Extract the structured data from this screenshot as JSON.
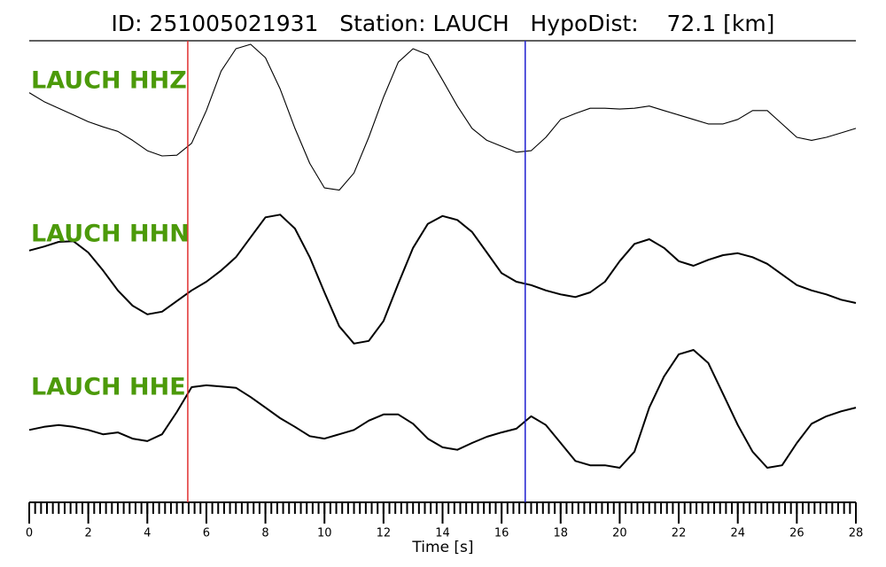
{
  "chart_data": {
    "type": "seismogram",
    "title": "ID: 251005021931   Station: LAUCH   HypoDist:    72.1 [km]",
    "xlabel": "Time [s]",
    "xlim": [
      0,
      28
    ],
    "xticks": [
      0,
      2,
      4,
      6,
      8,
      10,
      12,
      14,
      16,
      18,
      20,
      22,
      24,
      26,
      28
    ],
    "minor_tick_interval": 0.2,
    "x": [
      0,
      0.5,
      1,
      1.5,
      2,
      2.5,
      3,
      3.5,
      4,
      4.5,
      5,
      5.5,
      6,
      6.5,
      7,
      7.5,
      8,
      8.5,
      9,
      9.5,
      10,
      10.5,
      11,
      11.5,
      12,
      12.5,
      13,
      13.5,
      14,
      14.5,
      15,
      15.5,
      16,
      16.5,
      17,
      17.5,
      18,
      18.5,
      19,
      19.5,
      20,
      20.5,
      21,
      21.5,
      22,
      22.5,
      23,
      23.5,
      24,
      24.5,
      25,
      25.5,
      26,
      26.5,
      27,
      27.5,
      28
    ],
    "ylim": [
      -1,
      1
    ],
    "label_color": "#4c9a0a",
    "series": [
      {
        "name": "LAUCH HHZ",
        "color": "#000000",
        "values": [
          0.35,
          0.23,
          0.14,
          0.05,
          -0.04,
          -0.11,
          -0.17,
          -0.29,
          -0.43,
          -0.5,
          -0.49,
          -0.33,
          0.11,
          0.64,
          0.94,
          1.0,
          0.82,
          0.4,
          -0.13,
          -0.6,
          -0.93,
          -0.96,
          -0.73,
          -0.25,
          0.29,
          0.76,
          0.94,
          0.86,
          0.52,
          0.17,
          -0.13,
          -0.29,
          -0.37,
          -0.45,
          -0.43,
          -0.25,
          -0.01,
          0.07,
          0.14,
          0.14,
          0.13,
          0.14,
          0.17,
          0.11,
          0.05,
          -0.01,
          -0.07,
          -0.07,
          -0.01,
          0.11,
          0.11,
          -0.07,
          -0.25,
          -0.29,
          -0.25,
          -0.19,
          -0.13
        ]
      },
      {
        "name": "LAUCH HHN",
        "color": "#000000",
        "values": [
          0.43,
          0.49,
          0.56,
          0.57,
          0.4,
          0.13,
          -0.17,
          -0.4,
          -0.53,
          -0.49,
          -0.33,
          -0.17,
          -0.04,
          0.13,
          0.33,
          0.63,
          0.93,
          0.97,
          0.76,
          0.33,
          -0.2,
          -0.71,
          -0.97,
          -0.93,
          -0.63,
          -0.07,
          0.47,
          0.83,
          0.95,
          0.89,
          0.71,
          0.4,
          0.09,
          -0.04,
          -0.09,
          -0.17,
          -0.23,
          -0.27,
          -0.2,
          -0.04,
          0.27,
          0.53,
          0.6,
          0.47,
          0.27,
          0.2,
          0.29,
          0.36,
          0.39,
          0.33,
          0.23,
          0.07,
          -0.09,
          -0.17,
          -0.23,
          -0.31,
          -0.36
        ]
      },
      {
        "name": "LAUCH HHE",
        "color": "#000000",
        "values": [
          -0.29,
          -0.24,
          -0.21,
          -0.24,
          -0.29,
          -0.36,
          -0.33,
          -0.43,
          -0.47,
          -0.36,
          0,
          0.4,
          0.43,
          0.41,
          0.39,
          0.24,
          0.07,
          -0.1,
          -0.24,
          -0.39,
          -0.43,
          -0.36,
          -0.29,
          -0.14,
          -0.04,
          -0.04,
          -0.19,
          -0.43,
          -0.57,
          -0.61,
          -0.5,
          -0.4,
          -0.33,
          -0.27,
          -0.07,
          -0.21,
          -0.5,
          -0.79,
          -0.86,
          -0.86,
          -0.9,
          -0.64,
          0.07,
          0.57,
          0.93,
          1.0,
          0.79,
          0.29,
          -0.21,
          -0.64,
          -0.9,
          -0.86,
          -0.5,
          -0.19,
          -0.07,
          0.01,
          0.07
        ]
      }
    ],
    "markers": [
      {
        "x": 5.37,
        "color": "#e03030"
      },
      {
        "x": 16.8,
        "color": "#2020d0"
      }
    ]
  }
}
